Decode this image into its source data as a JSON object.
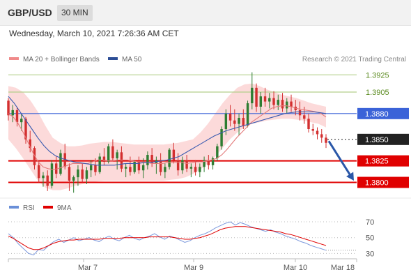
{
  "header": {
    "pair": "GBP/USD",
    "timeframe": "30 MIN"
  },
  "datetime": "Wednesday, March 10, 2021 7:26:36 AM CET",
  "legend_price": {
    "ma20": "MA 20 + Bollinger Bands",
    "ma50": "MA 50"
  },
  "legend_rsi": {
    "rsi": "RSI",
    "ma9": "9MA"
  },
  "credit": "Research © 2021 Trading Central",
  "colors": {
    "up": "#2e7d32",
    "down": "#d32f2f",
    "bollinger": "#fbd3d3",
    "ma20": "#e37b7b",
    "ma50": "#3a5bb0",
    "resistance": "#b3cf8a",
    "support": "#e00000",
    "pivot": "#3b63d8",
    "current": "#222222",
    "arrow": "#2a57a8"
  },
  "chart_data": [
    {
      "type": "candlestick",
      "title": "GBP/USD 30 MIN",
      "ylim": [
        1.3785,
        1.3935
      ],
      "x_ticks": [
        "Mar 7",
        "Mar 9",
        "Mar 10",
        "Mar 18"
      ],
      "levels": [
        {
          "value": 1.3925,
          "label": "1.3925",
          "kind": "resistance"
        },
        {
          "value": 1.3905,
          "label": "1.3905",
          "kind": "resistance"
        },
        {
          "value": 1.388,
          "label": "1.3880",
          "kind": "pivot"
        },
        {
          "value": 1.385,
          "label": "1.3850",
          "kind": "current"
        },
        {
          "value": 1.3825,
          "label": "1.3825",
          "kind": "support"
        },
        {
          "value": 1.38,
          "label": "1.3800",
          "kind": "support"
        }
      ],
      "forecast_arrow": {
        "from": 1.3848,
        "to": 1.3802
      },
      "ohlc": [
        [
          1.3895,
          1.3898,
          1.3872,
          1.3878
        ],
        [
          1.3878,
          1.389,
          1.387,
          1.3884
        ],
        [
          1.3884,
          1.3887,
          1.3865,
          1.387
        ],
        [
          1.387,
          1.388,
          1.386,
          1.3874
        ],
        [
          1.3874,
          1.3876,
          1.3845,
          1.385
        ],
        [
          1.385,
          1.386,
          1.3835,
          1.384
        ],
        [
          1.384,
          1.3842,
          1.3815,
          1.382
        ],
        [
          1.382,
          1.3826,
          1.38,
          1.3805
        ],
        [
          1.3805,
          1.3812,
          1.3795,
          1.3808
        ],
        [
          1.3808,
          1.3814,
          1.379,
          1.3796
        ],
        [
          1.3796,
          1.3826,
          1.3793,
          1.3822
        ],
        [
          1.3822,
          1.383,
          1.3805,
          1.381
        ],
        [
          1.381,
          1.3838,
          1.3808,
          1.3834
        ],
        [
          1.3834,
          1.3845,
          1.3815,
          1.3818
        ],
        [
          1.3818,
          1.3822,
          1.379,
          1.3802
        ],
        [
          1.3802,
          1.3808,
          1.3788,
          1.3806
        ],
        [
          1.3806,
          1.382,
          1.3796,
          1.3815
        ],
        [
          1.3815,
          1.3822,
          1.38,
          1.3804
        ],
        [
          1.3804,
          1.3818,
          1.3798,
          1.3814
        ],
        [
          1.3814,
          1.3826,
          1.3806,
          1.382
        ],
        [
          1.382,
          1.3828,
          1.3808,
          1.3812
        ],
        [
          1.3812,
          1.3834,
          1.381,
          1.383
        ],
        [
          1.383,
          1.384,
          1.382,
          1.3824
        ],
        [
          1.3824,
          1.3845,
          1.3822,
          1.3842
        ],
        [
          1.3842,
          1.385,
          1.3825,
          1.3828
        ],
        [
          1.3828,
          1.3838,
          1.3815,
          1.3835
        ],
        [
          1.3835,
          1.3842,
          1.3812,
          1.3816
        ],
        [
          1.3816,
          1.3822,
          1.3806,
          1.3818
        ],
        [
          1.3818,
          1.383,
          1.3808,
          1.3812
        ],
        [
          1.3812,
          1.3826,
          1.381,
          1.3824
        ],
        [
          1.3824,
          1.383,
          1.381,
          1.3814
        ],
        [
          1.3814,
          1.3828,
          1.3805,
          1.382
        ],
        [
          1.382,
          1.3836,
          1.3815,
          1.3832
        ],
        [
          1.3832,
          1.384,
          1.3818,
          1.3822
        ],
        [
          1.3822,
          1.383,
          1.381,
          1.3826
        ],
        [
          1.3826,
          1.3834,
          1.3808,
          1.3812
        ],
        [
          1.3812,
          1.3822,
          1.3805,
          1.3818
        ],
        [
          1.3818,
          1.384,
          1.3815,
          1.3838
        ],
        [
          1.3838,
          1.3846,
          1.3822,
          1.3826
        ],
        [
          1.3826,
          1.3834,
          1.3808,
          1.3814
        ],
        [
          1.3814,
          1.383,
          1.381,
          1.3826
        ],
        [
          1.3826,
          1.3832,
          1.3812,
          1.3816
        ],
        [
          1.3816,
          1.3822,
          1.3806,
          1.3818
        ],
        [
          1.3818,
          1.3826,
          1.3808,
          1.3812
        ],
        [
          1.3812,
          1.3822,
          1.3806,
          1.3818
        ],
        [
          1.3818,
          1.383,
          1.3812,
          1.3826
        ],
        [
          1.3826,
          1.3832,
          1.3815,
          1.382
        ],
        [
          1.382,
          1.383,
          1.3815,
          1.3828
        ],
        [
          1.3828,
          1.3845,
          1.3825,
          1.3842
        ],
        [
          1.3842,
          1.3865,
          1.3838,
          1.3862
        ],
        [
          1.3862,
          1.3885,
          1.3855,
          1.388
        ],
        [
          1.388,
          1.389,
          1.3865,
          1.3872
        ],
        [
          1.3872,
          1.3885,
          1.386,
          1.3868
        ],
        [
          1.3868,
          1.388,
          1.3855,
          1.3875
        ],
        [
          1.3875,
          1.3885,
          1.3862,
          1.3866
        ],
        [
          1.3866,
          1.3895,
          1.3864,
          1.3892
        ],
        [
          1.3892,
          1.3928,
          1.3885,
          1.391
        ],
        [
          1.391,
          1.3915,
          1.3882,
          1.3888
        ],
        [
          1.3888,
          1.3905,
          1.388,
          1.39
        ],
        [
          1.39,
          1.391,
          1.3888,
          1.3894
        ],
        [
          1.3894,
          1.3904,
          1.3886,
          1.3898
        ],
        [
          1.3898,
          1.3906,
          1.3885,
          1.389
        ],
        [
          1.389,
          1.3902,
          1.3884,
          1.3896
        ],
        [
          1.3896,
          1.3904,
          1.3882,
          1.3886
        ],
        [
          1.3886,
          1.3898,
          1.388,
          1.3894
        ],
        [
          1.3894,
          1.3902,
          1.3882,
          1.3888
        ],
        [
          1.3888,
          1.3896,
          1.3878,
          1.3884
        ],
        [
          1.3884,
          1.3894,
          1.3872,
          1.3878
        ],
        [
          1.3878,
          1.3888,
          1.3868,
          1.3874
        ],
        [
          1.3874,
          1.388,
          1.3858,
          1.3862
        ],
        [
          1.3862,
          1.3868,
          1.3855,
          1.386
        ],
        [
          1.386,
          1.3864,
          1.385,
          1.3856
        ],
        [
          1.3856,
          1.3862,
          1.3846,
          1.3852
        ],
        [
          1.3852,
          1.3856,
          1.384,
          1.3846
        ]
      ],
      "ma20": [
        1.388,
        1.3876,
        1.3868,
        1.3858,
        1.3846,
        1.3834,
        1.3824,
        1.3818,
        1.3816,
        1.3815,
        1.3816,
        1.3818,
        1.382,
        1.3822,
        1.3822,
        1.3822,
        1.3822,
        1.3824,
        1.3826,
        1.3826,
        1.3825,
        1.3825,
        1.3826,
        1.3826,
        1.3826,
        1.3825,
        1.3824,
        1.3824,
        1.3823,
        1.3822,
        1.3822,
        1.3822,
        1.3823,
        1.3823,
        1.3823,
        1.3823,
        1.3822,
        1.3823,
        1.3824,
        1.3824,
        1.3825,
        1.3826,
        1.3828,
        1.3832,
        1.3838,
        1.3845,
        1.3852,
        1.3858,
        1.3864,
        1.387,
        1.3874,
        1.3878,
        1.3882,
        1.3886,
        1.3888,
        1.3889,
        1.3889,
        1.3888,
        1.3886,
        1.3885,
        1.3884,
        1.3883,
        1.3882,
        1.388,
        1.3876
      ],
      "ma50": [
        1.39,
        1.3892,
        1.3882,
        1.3872,
        1.3862,
        1.3852,
        1.3843,
        1.3836,
        1.3831,
        1.3828,
        1.3826,
        1.3824,
        1.3823,
        1.3822,
        1.3821,
        1.382,
        1.382,
        1.382,
        1.382,
        1.3821,
        1.3822,
        1.3822,
        1.3822,
        1.3823,
        1.3823,
        1.3824,
        1.3825,
        1.3826,
        1.3828,
        1.383,
        1.3834,
        1.3838,
        1.3842,
        1.3846,
        1.385,
        1.3854,
        1.3857,
        1.386,
        1.3862,
        1.3864,
        1.3866,
        1.3868,
        1.387,
        1.3872,
        1.3874,
        1.3876,
        1.3878,
        1.388,
        1.3881,
        1.3882,
        1.3882,
        1.3882,
        1.3882,
        1.3881,
        1.388
      ],
      "bb_upper": [
        1.3912,
        1.391,
        1.3905,
        1.3895,
        1.3882,
        1.3866,
        1.3852,
        1.3846,
        1.3842,
        1.3842,
        1.3843,
        1.3845,
        1.3846,
        1.3847,
        1.3847,
        1.3846,
        1.3845,
        1.3844,
        1.3844,
        1.3844,
        1.3844,
        1.3844,
        1.3845,
        1.3846,
        1.3848,
        1.385,
        1.3858,
        1.3868,
        1.388,
        1.3892,
        1.3902,
        1.391,
        1.3914,
        1.3915,
        1.3912,
        1.3908,
        1.3905,
        1.3902,
        1.39,
        1.3898,
        1.3895,
        1.3892,
        1.389,
        1.3888
      ],
      "bb_lower": [
        1.385,
        1.384,
        1.3828,
        1.3815,
        1.3802,
        1.3794,
        1.3791,
        1.3791,
        1.3793,
        1.3796,
        1.3798,
        1.38,
        1.3801,
        1.3802,
        1.3802,
        1.3802,
        1.3802,
        1.3802,
        1.3802,
        1.3802,
        1.3802,
        1.3802,
        1.3803,
        1.3804,
        1.3806,
        1.381,
        1.3815,
        1.3822,
        1.383,
        1.384,
        1.385,
        1.3858,
        1.3864,
        1.3868,
        1.387,
        1.3872,
        1.3873,
        1.3874,
        1.3874,
        1.3873,
        1.3872,
        1.387,
        1.3868,
        1.3864
      ]
    },
    {
      "type": "line",
      "title": "RSI",
      "ylim": [
        25,
        78
      ],
      "y_ticks": [
        30,
        50,
        70
      ],
      "series": [
        {
          "name": "RSI",
          "values": [
            55,
            50,
            42,
            36,
            30,
            28,
            35,
            34,
            40,
            45,
            48,
            44,
            47,
            50,
            46,
            48,
            50,
            47,
            45,
            49,
            52,
            48,
            46,
            50,
            53,
            49,
            47,
            50,
            52,
            55,
            51,
            48,
            52,
            50,
            47,
            44,
            46,
            50,
            53,
            55,
            58,
            62,
            65,
            68,
            70,
            66,
            69,
            67,
            64,
            62,
            60,
            58,
            60,
            57,
            55,
            52,
            50,
            48,
            45,
            43,
            40,
            38,
            36,
            34
          ]
        },
        {
          "name": "9MA",
          "values": [
            52,
            49,
            45,
            41,
            37,
            35,
            35,
            37,
            40,
            43,
            45,
            46,
            47,
            47,
            48,
            48,
            48,
            48,
            48,
            49,
            49,
            49,
            49,
            50,
            50,
            50,
            50,
            50,
            51,
            51,
            51,
            51,
            51,
            50,
            49,
            48,
            48,
            49,
            50,
            52,
            54,
            57,
            60,
            62,
            63,
            64,
            64,
            64,
            63,
            62,
            61,
            60,
            59,
            58,
            57,
            55,
            54,
            52,
            50,
            48,
            46,
            44,
            42,
            40
          ]
        }
      ]
    }
  ]
}
